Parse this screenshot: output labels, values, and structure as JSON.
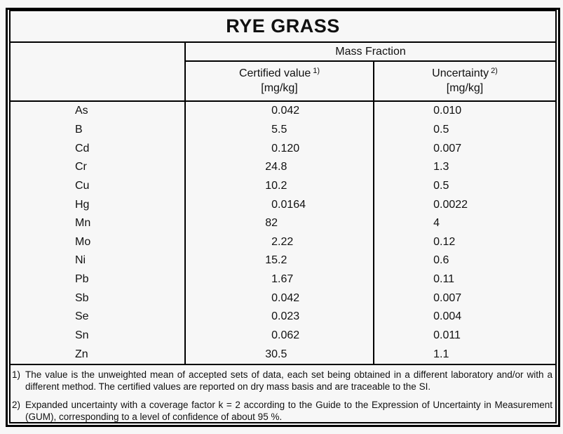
{
  "title": "RYE GRASS",
  "table": {
    "group_header": "Mass Fraction",
    "columns": [
      {
        "label": "Certified value",
        "ref": "1)",
        "unit": "[mg/kg]"
      },
      {
        "label": "Uncertainty",
        "ref": "2)",
        "unit": "[mg/kg]"
      }
    ],
    "rows": [
      {
        "element": "As",
        "certified": "0.042",
        "uncertainty": "0.010"
      },
      {
        "element": "B",
        "certified": "5.5",
        "uncertainty": "0.5"
      },
      {
        "element": "Cd",
        "certified": "0.120",
        "uncertainty": "0.007"
      },
      {
        "element": "Cr",
        "certified": "24.8",
        "uncertainty": "1.3"
      },
      {
        "element": "Cu",
        "certified": "10.2",
        "uncertainty": "0.5"
      },
      {
        "element": "Hg",
        "certified": "0.0164",
        "uncertainty": "0.0022"
      },
      {
        "element": "Mn",
        "certified": "82",
        "uncertainty": "4"
      },
      {
        "element": "Mo",
        "certified": "2.22",
        "uncertainty": "0.12"
      },
      {
        "element": "Ni",
        "certified": "15.2",
        "uncertainty": "0.6"
      },
      {
        "element": "Pb",
        "certified": "1.67",
        "uncertainty": "0.11"
      },
      {
        "element": "Sb",
        "certified": "0.042",
        "uncertainty": "0.007"
      },
      {
        "element": "Se",
        "certified": "0.023",
        "uncertainty": "0.004"
      },
      {
        "element": "Sn",
        "certified": "0.062",
        "uncertainty": "0.011"
      },
      {
        "element": "Zn",
        "certified": "30.5",
        "uncertainty": "1.1"
      }
    ]
  },
  "footnotes": [
    {
      "marker": "1)",
      "text": "The value is the unweighted mean of accepted sets of data, each set being obtained in a different laboratory and/or with a different method. The certified values are reported on dry mass basis and are traceable to the SI."
    },
    {
      "marker": "2)",
      "text": "Expanded uncertainty with a coverage factor k = 2 according to the Guide to the Expression of Uncertainty in Measurement (GUM), corresponding to a level of confidence of about 95 %."
    }
  ],
  "colors": {
    "border": "#000000",
    "background": "#f7f7f7",
    "text": "#111111"
  }
}
